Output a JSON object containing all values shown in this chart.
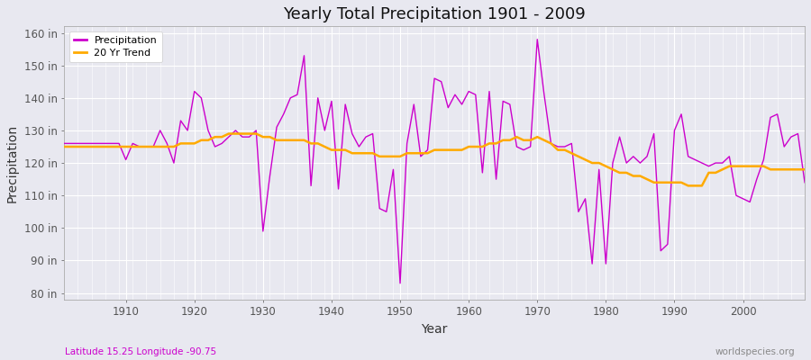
{
  "title": "Yearly Total Precipitation 1901 - 2009",
  "xlabel": "Year",
  "ylabel": "Precipitation",
  "subtitle_left": "Latitude 15.25 Longitude -90.75",
  "subtitle_right": "worldspecies.org",
  "bg_color": "#e8e8f0",
  "plot_bg_color": "#e8e8f0",
  "line_color": "#cc00cc",
  "trend_color": "#ffaa00",
  "ylim": [
    78,
    162
  ],
  "yticks": [
    80,
    90,
    100,
    110,
    120,
    130,
    140,
    150,
    160
  ],
  "years": [
    1901,
    1902,
    1903,
    1904,
    1905,
    1906,
    1907,
    1908,
    1909,
    1910,
    1911,
    1912,
    1913,
    1914,
    1915,
    1916,
    1917,
    1918,
    1919,
    1920,
    1921,
    1922,
    1923,
    1924,
    1925,
    1926,
    1927,
    1928,
    1929,
    1930,
    1931,
    1932,
    1933,
    1934,
    1935,
    1936,
    1937,
    1938,
    1939,
    1940,
    1941,
    1942,
    1943,
    1944,
    1945,
    1946,
    1947,
    1948,
    1949,
    1950,
    1951,
    1952,
    1953,
    1954,
    1955,
    1956,
    1957,
    1958,
    1959,
    1960,
    1961,
    1962,
    1963,
    1964,
    1965,
    1966,
    1967,
    1968,
    1969,
    1970,
    1971,
    1972,
    1973,
    1974,
    1975,
    1976,
    1977,
    1978,
    1979,
    1980,
    1981,
    1982,
    1983,
    1984,
    1985,
    1986,
    1987,
    1988,
    1989,
    1990,
    1991,
    1992,
    1993,
    1994,
    1995,
    1996,
    1997,
    1998,
    1999,
    2000,
    2001,
    2002,
    2003,
    2004,
    2005,
    2006,
    2007,
    2008,
    2009
  ],
  "precip": [
    126,
    126,
    126,
    126,
    126,
    126,
    126,
    126,
    126,
    121,
    126,
    125,
    125,
    125,
    130,
    126,
    120,
    133,
    130,
    142,
    140,
    130,
    125,
    126,
    128,
    130,
    128,
    128,
    130,
    99,
    116,
    131,
    135,
    140,
    141,
    153,
    113,
    140,
    130,
    139,
    112,
    138,
    129,
    125,
    128,
    129,
    106,
    105,
    118,
    83,
    126,
    138,
    122,
    124,
    146,
    145,
    137,
    141,
    138,
    142,
    141,
    117,
    142,
    115,
    139,
    138,
    125,
    124,
    125,
    158,
    141,
    126,
    125,
    125,
    126,
    105,
    109,
    89,
    118,
    89,
    120,
    128,
    120,
    122,
    120,
    122,
    129,
    93,
    95,
    130,
    135,
    122,
    121,
    120,
    119,
    120,
    120,
    122,
    110,
    109,
    108,
    115,
    121,
    134,
    135,
    125,
    128,
    129,
    114
  ],
  "trend": [
    125,
    125,
    125,
    125,
    125,
    125,
    125,
    125,
    125,
    125,
    125,
    125,
    125,
    125,
    125,
    125,
    125,
    126,
    126,
    126,
    127,
    127,
    128,
    128,
    129,
    129,
    129,
    129,
    129,
    128,
    128,
    127,
    127,
    127,
    127,
    127,
    126,
    126,
    125,
    124,
    124,
    124,
    123,
    123,
    123,
    123,
    122,
    122,
    122,
    122,
    123,
    123,
    123,
    123,
    124,
    124,
    124,
    124,
    124,
    125,
    125,
    125,
    126,
    126,
    127,
    127,
    128,
    127,
    127,
    128,
    127,
    126,
    124,
    124,
    123,
    122,
    121,
    120,
    120,
    119,
    118,
    117,
    117,
    116,
    116,
    115,
    114,
    114,
    114,
    114,
    114,
    113,
    113,
    113,
    117,
    117,
    118,
    119,
    119,
    119,
    119,
    119,
    119,
    118,
    118,
    118,
    118,
    118,
    118
  ]
}
